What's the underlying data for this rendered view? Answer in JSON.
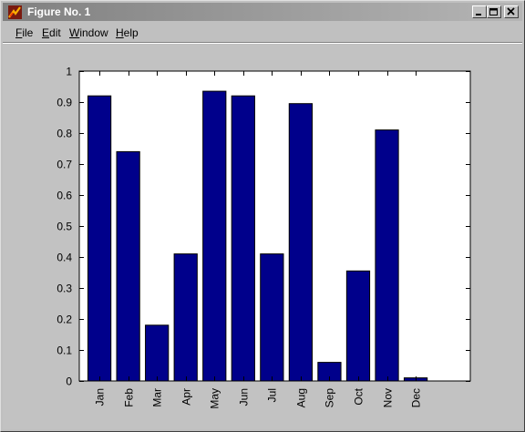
{
  "window": {
    "title": "Figure No. 1",
    "controls": [
      {
        "name": "minimize",
        "icon": "minimize-icon"
      },
      {
        "name": "restore",
        "icon": "restore-icon"
      },
      {
        "name": "close",
        "icon": "close-icon"
      }
    ]
  },
  "menu": [
    {
      "label": "File",
      "accel": "F"
    },
    {
      "label": "Edit",
      "accel": "E"
    },
    {
      "label": "Window",
      "accel": "W"
    },
    {
      "label": "Help",
      "accel": "H"
    }
  ],
  "colors": {
    "bar": "#00008b",
    "axes_background": "#ffffff",
    "figure_background": "#c2c2c2"
  },
  "chart_data": {
    "type": "bar",
    "categories": [
      "Jan",
      "Feb",
      "Mar",
      "Apr",
      "May",
      "Jun",
      "Jul",
      "Aug",
      "Sep",
      "Oct",
      "Nov",
      "Dec"
    ],
    "values": [
      0.92,
      0.74,
      0.18,
      0.41,
      0.935,
      0.92,
      0.41,
      0.895,
      0.06,
      0.355,
      0.81,
      0.01
    ],
    "xlim": [
      0.3,
      13.9
    ],
    "ylim": [
      0,
      1
    ],
    "yticks": [
      0,
      0.1,
      0.2,
      0.3,
      0.4,
      0.5,
      0.6,
      0.7,
      0.8,
      0.9,
      1
    ],
    "ytick_labels": [
      "0",
      "0.1",
      "0.2",
      "0.3",
      "0.4",
      "0.5",
      "0.6",
      "0.7",
      "0.8",
      "0.9",
      "1"
    ],
    "bar_width": 0.8,
    "grid": false,
    "xtick_label_rotation": 90
  }
}
